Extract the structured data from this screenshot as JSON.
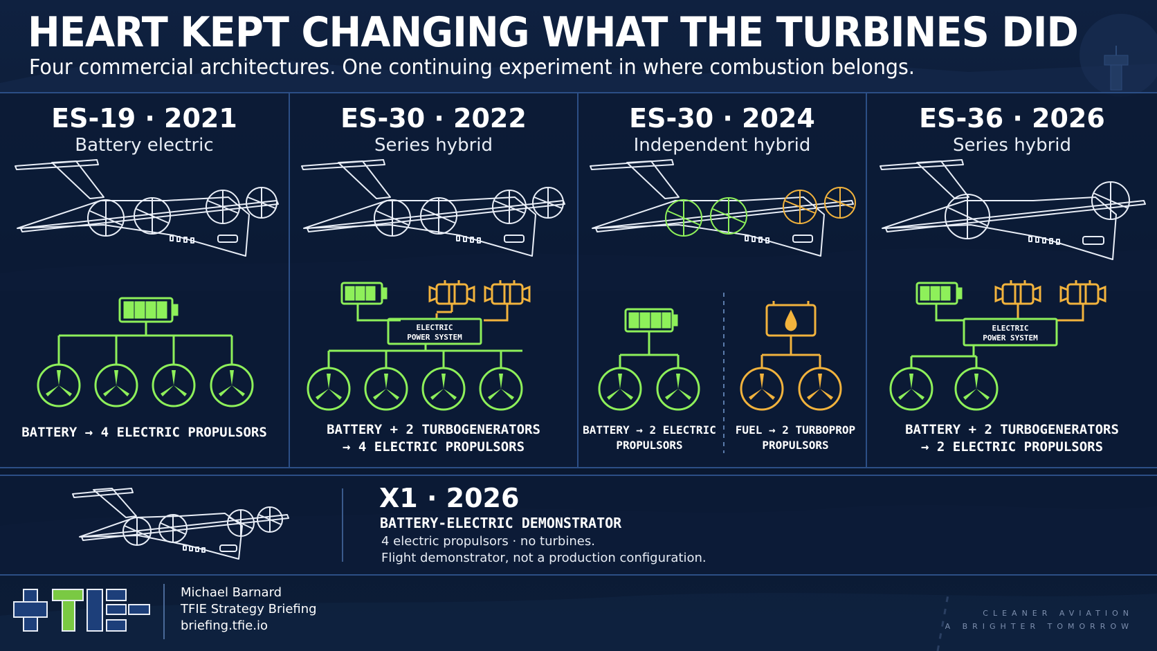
{
  "header": {
    "title": "HEART KEPT CHANGING WHAT THE TURBINES DID",
    "subtitle": "Four commercial architectures. One continuing experiment in where combustion belongs."
  },
  "panels": [
    {
      "heading": "ES-19 · 2021",
      "architecture": "Battery electric",
      "caption_lines": [
        "BATTERY → 4 ELECTRIC PROPULSORS"
      ]
    },
    {
      "heading": "ES-30 · 2022",
      "architecture": "Series  hybrid",
      "power_system_label": [
        "ELECTRIC",
        "POWER SYSTEM"
      ],
      "caption_lines": [
        "BATTERY + 2 TURBOGENERATORS",
        "→ 4 ELECTRIC PROPULSORS"
      ]
    },
    {
      "heading": "ES-30 · 2024",
      "architecture": "Independent hybrid",
      "caption_left_lines": [
        "BATTERY → 2 ELECTRIC",
        "PROPULSORS"
      ],
      "caption_right_lines": [
        "FUEL → 2 TURBOPROP",
        "PROPULSORS"
      ]
    },
    {
      "heading": "ES-36 · 2026",
      "architecture": "Series hybrid",
      "power_system_label": [
        "ELECTRIC",
        "POWER SYSTEM"
      ],
      "caption_lines": [
        "BATTERY + 2 TURBOGENERATORS",
        "→ 2 ELECTRIC PROPULSORS"
      ]
    }
  ],
  "x1": {
    "heading": "X1 · 2026",
    "subheading": "BATTERY-ELECTRIC DEMONSTRATOR",
    "line1": "4 electric propulsors · no turbines.",
    "line2": "Flight demonstrator, not a production configuration."
  },
  "footer": {
    "author": "Michael Barnard",
    "publication": "TFIE Strategy Briefing",
    "website": "briefing.tfie.io",
    "tagline1": "CLEANER AVIATION",
    "tagline2": "A BRIGHTER TOMORROW"
  },
  "colors": {
    "electric": "#8ef05a",
    "fuel": "#f2b33d",
    "panel_border": "#2c4f86",
    "line_art": "#e9eef7"
  },
  "icons": [
    "battery-icon",
    "turbogenerator-icon",
    "fuel-tank-icon",
    "propulsor-icon",
    "aircraft-icon",
    "control-tower-icon"
  ]
}
